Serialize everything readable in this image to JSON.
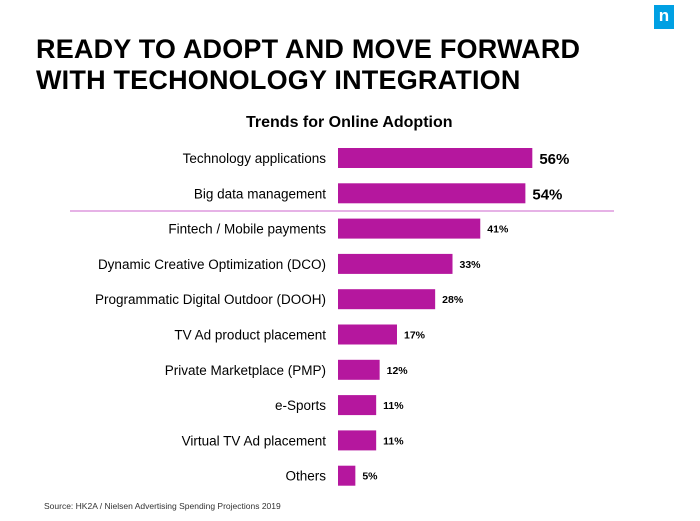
{
  "header": {
    "title_line1": "READY TO ADOPT AND MOVE FORWARD",
    "title_line2": "WITH TECHONOLOGY INTEGRATION",
    "logo_letter": "n"
  },
  "colors": {
    "bar": "#b5179e",
    "divider": "#cc66cc",
    "logo": "#00a0e3"
  },
  "chart_data": {
    "type": "bar",
    "orientation": "horizontal",
    "title": "Trends for Online Adoption",
    "categories": [
      "Technology applications",
      "Big data management",
      "Fintech / Mobile payments",
      "Dynamic Creative Optimization (DCO)",
      "Programmatic Digital Outdoor (DOOH)",
      "TV Ad product placement",
      "Private Marketplace (PMP)",
      "e-Sports",
      "Virtual TV Ad placement",
      "Others"
    ],
    "values": [
      56,
      54,
      41,
      33,
      28,
      17,
      12,
      11,
      11,
      5
    ],
    "value_labels": [
      "56%",
      "54%",
      "41%",
      "33%",
      "28%",
      "17%",
      "12%",
      "11%",
      "11%",
      "5%"
    ],
    "unit": "%",
    "highlighted_count": 2
  },
  "footer": {
    "source": "Source: HK2A / Nielsen Advertising Spending Projections 2019"
  }
}
